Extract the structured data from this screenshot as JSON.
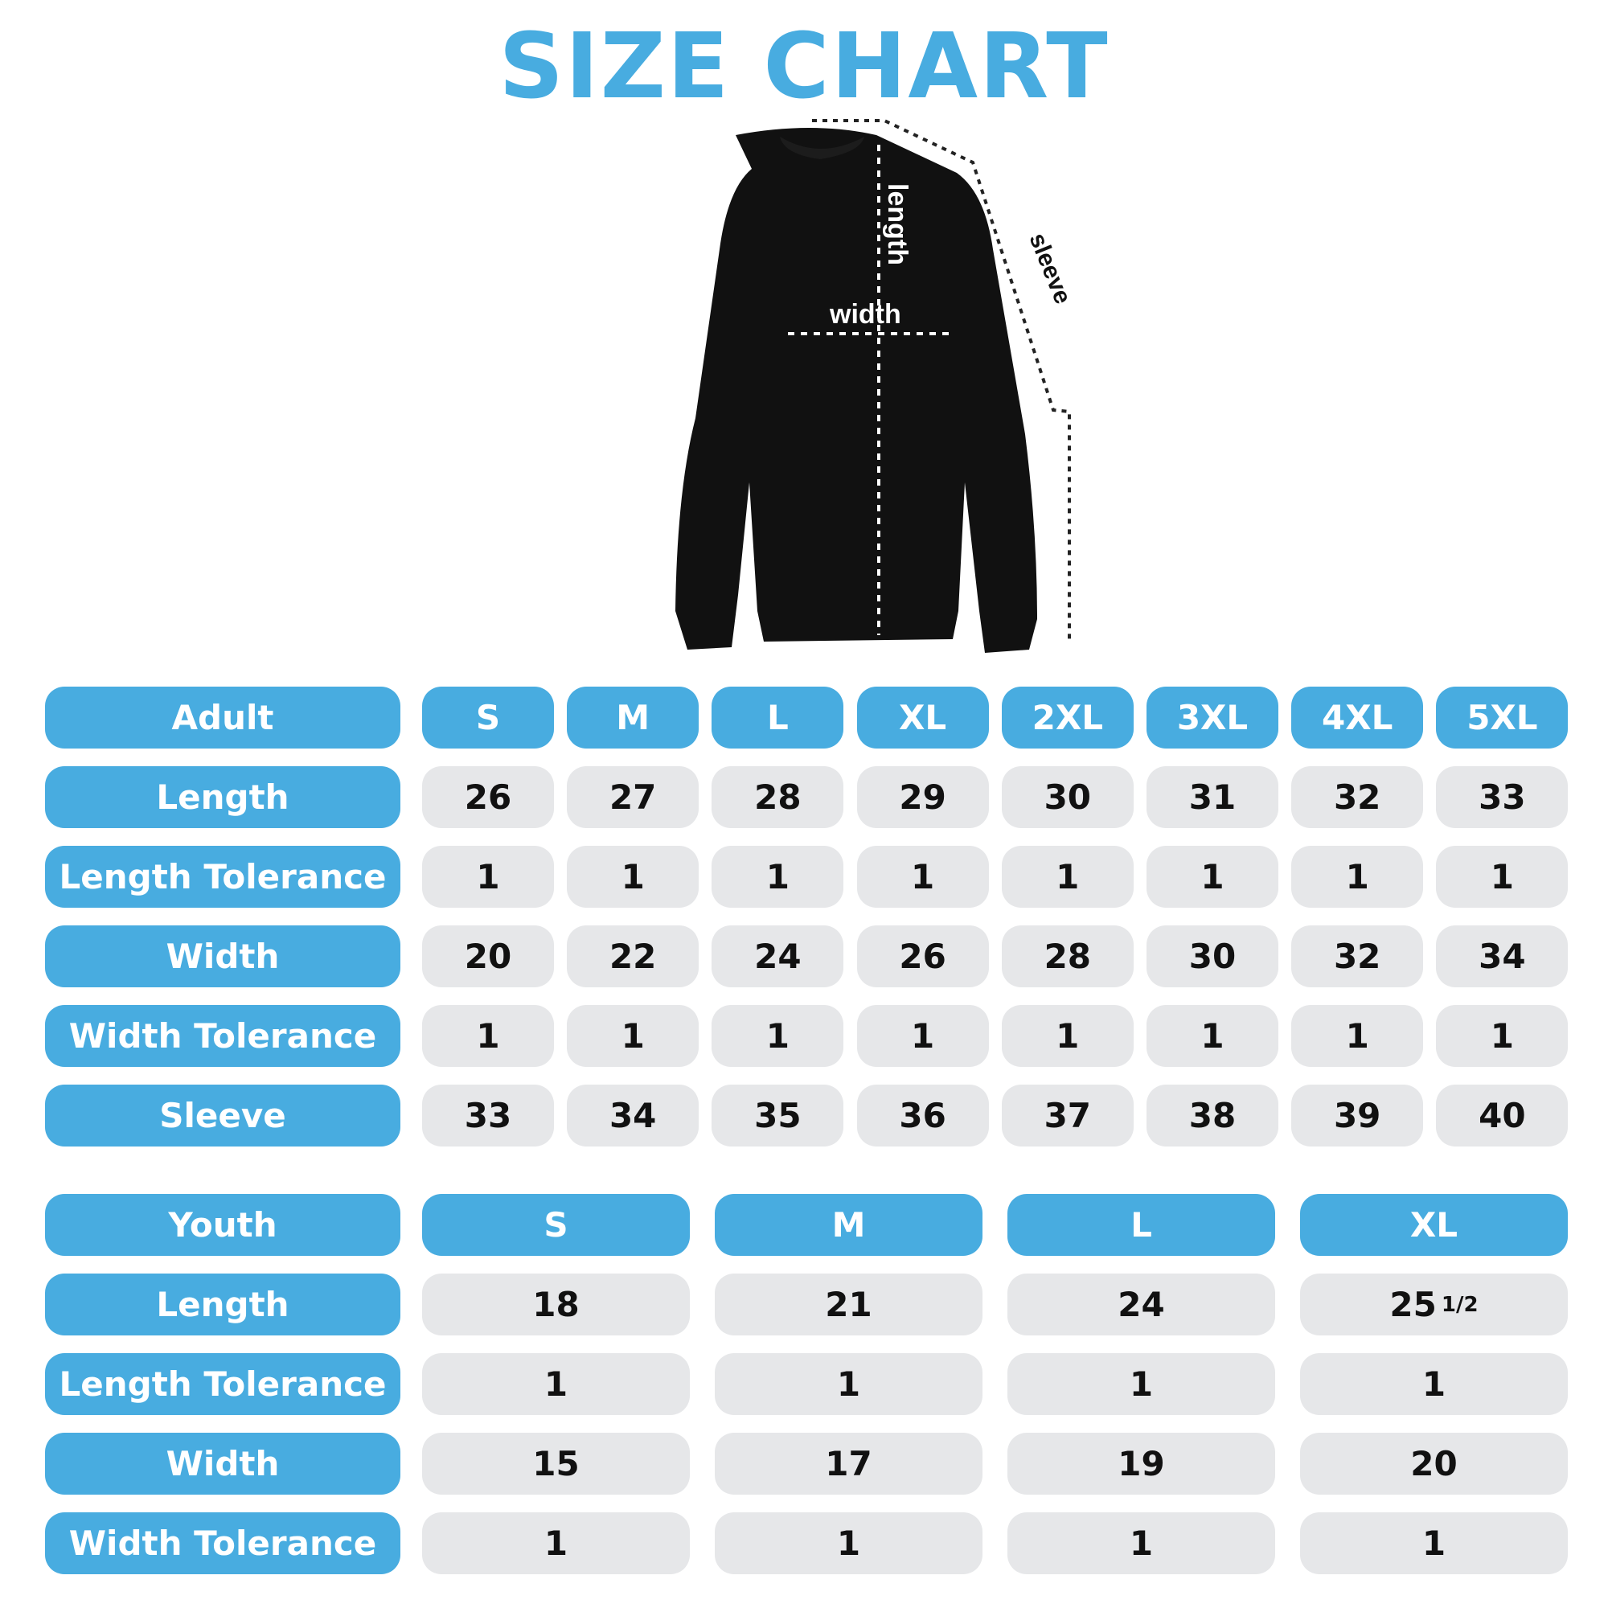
{
  "title": "SIZE CHART",
  "colors": {
    "accent": "#48ace0",
    "cell": "#e6e7e9",
    "garment": "#111111"
  },
  "diagram": {
    "width_label": "width",
    "length_label": "length",
    "sleeve_label": "sleeve"
  },
  "adult": {
    "header": "Adult",
    "sizes": [
      "S",
      "M",
      "L",
      "XL",
      "2XL",
      "3XL",
      "4XL",
      "5XL"
    ],
    "rows": [
      {
        "label": "Length",
        "values": [
          "26",
          "27",
          "28",
          "29",
          "30",
          "31",
          "32",
          "33"
        ]
      },
      {
        "label": "Length Tolerance",
        "values": [
          "1",
          "1",
          "1",
          "1",
          "1",
          "1",
          "1",
          "1"
        ]
      },
      {
        "label": "Width",
        "values": [
          "20",
          "22",
          "24",
          "26",
          "28",
          "30",
          "32",
          "34"
        ]
      },
      {
        "label": "Width Tolerance",
        "values": [
          "1",
          "1",
          "1",
          "1",
          "1",
          "1",
          "1",
          "1"
        ]
      },
      {
        "label": "Sleeve",
        "values": [
          "33",
          "34",
          "35",
          "36",
          "37",
          "38",
          "39",
          "40"
        ]
      }
    ]
  },
  "youth": {
    "header": "Youth",
    "sizes": [
      "S",
      "M",
      "L",
      "XL"
    ],
    "rows": [
      {
        "label": "Length",
        "values": [
          "18",
          "21",
          "24",
          "25 1/2"
        ]
      },
      {
        "label": "Length Tolerance",
        "values": [
          "1",
          "1",
          "1",
          "1"
        ]
      },
      {
        "label": "Width",
        "values": [
          "15",
          "17",
          "19",
          "20"
        ]
      },
      {
        "label": "Width Tolerance",
        "values": [
          "1",
          "1",
          "1",
          "1"
        ]
      }
    ]
  }
}
